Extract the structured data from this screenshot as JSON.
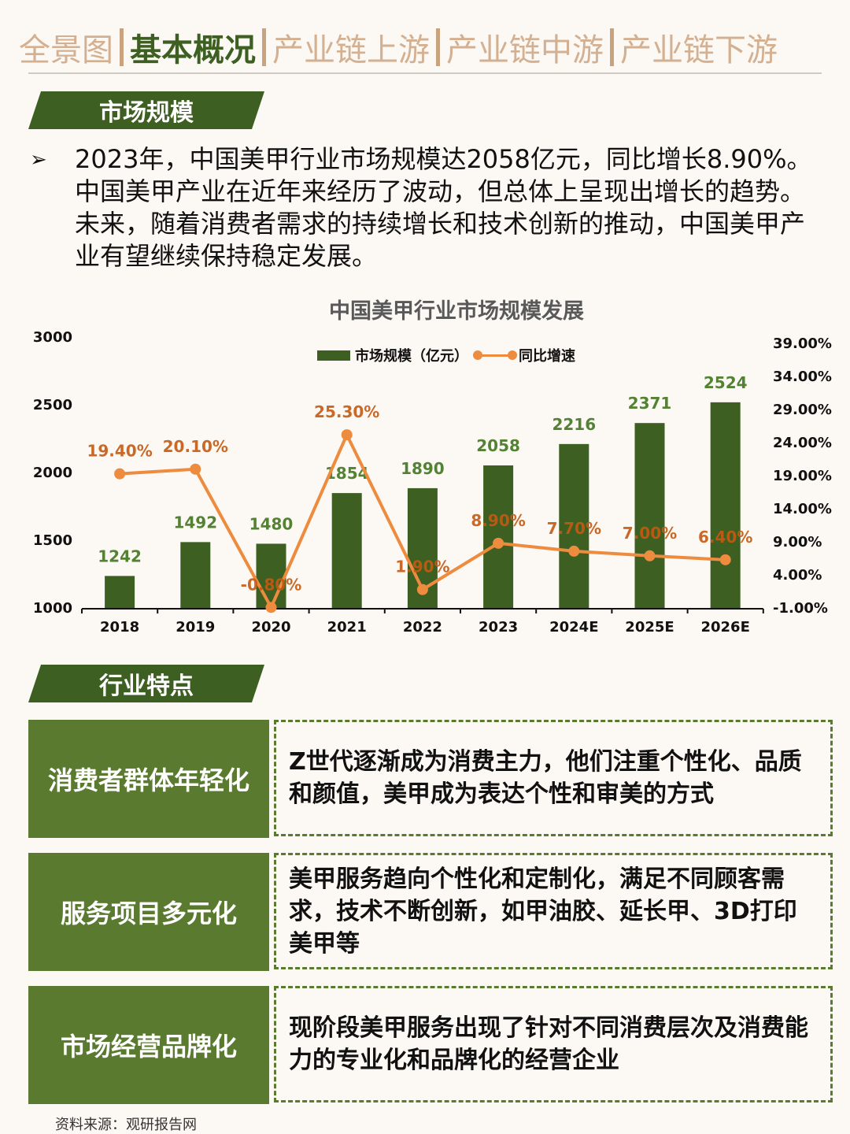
{
  "nav": {
    "items": [
      {
        "label": "全景图",
        "active": false
      },
      {
        "label": "基本概况",
        "active": true
      },
      {
        "label": "产业链上游",
        "active": false
      },
      {
        "label": "产业链中游",
        "active": false
      },
      {
        "label": "产业链下游",
        "active": false
      }
    ]
  },
  "section_market": {
    "title": "市场规模",
    "bullet": "➢",
    "paragraph": "2023年，中国美甲行业市场规模达2058亿元，同比增长8.90%。中国美甲产业在近年来经历了波动，但总体上呈现出增长的趋势。未来，随着消费者需求的持续增长和技术创新的推动，中国美甲产业有望继续保持稳定发展。"
  },
  "chart_data": {
    "type": "bar",
    "title": "中国美甲行业市场规模发展",
    "categories": [
      "2018",
      "2019",
      "2020",
      "2021",
      "2022",
      "2023",
      "2024E",
      "2025E",
      "2026E"
    ],
    "series": [
      {
        "name": "市场规模（亿元）",
        "type": "bar",
        "axis": "left",
        "color": "#3d5f22",
        "values": [
          1242,
          1492,
          1480,
          1854,
          1890,
          2058,
          2216,
          2371,
          2524
        ],
        "labels": [
          "1242",
          "1492",
          "1480",
          "1854",
          "1890",
          "2058",
          "2216",
          "2371",
          "2524"
        ]
      },
      {
        "name": "同比增速",
        "type": "line",
        "axis": "right",
        "color": "#ed8b3e",
        "values": [
          19.4,
          20.1,
          -0.8,
          25.3,
          1.9,
          8.9,
          7.7,
          7.0,
          6.4
        ],
        "labels": [
          "19.40%",
          "20.10%",
          "-0.80%",
          "25.30%",
          "1.90%",
          "8.90%",
          "7.70%",
          "7.00%",
          "6.40%"
        ]
      }
    ],
    "y_left": {
      "min": 1000,
      "max": 3000,
      "ticks": [
        "3000",
        "2500",
        "2000",
        "1500",
        "1000"
      ]
    },
    "y_right": {
      "min": -1,
      "max": 39,
      "ticks": [
        "39.00%",
        "34.00%",
        "29.00%",
        "24.00%",
        "19.00%",
        "14.00%",
        "9.00%",
        "4.00%",
        "-1.00%"
      ]
    },
    "xlabel": "",
    "ylabel": "",
    "grid": false,
    "legend_position": "top"
  },
  "section_features": {
    "title": "行业特点",
    "items": [
      {
        "label": "消费者群体年轻化",
        "text": "Z世代逐渐成为消费主力，他们注重个性化、品质和颜值，美甲成为表达个性和审美的方式"
      },
      {
        "label": "服务项目多元化",
        "text": "美甲服务趋向个性化和定制化，满足不同顾客需求，技术不断创新，如甲油胶、延长甲、3D打印美甲等"
      },
      {
        "label": "市场经营品牌化",
        "text": "现阶段美甲服务出现了针对不同消费层次及消费能力的专业化和品牌化的经营企业"
      }
    ]
  },
  "source": "资料来源：观研报告网"
}
